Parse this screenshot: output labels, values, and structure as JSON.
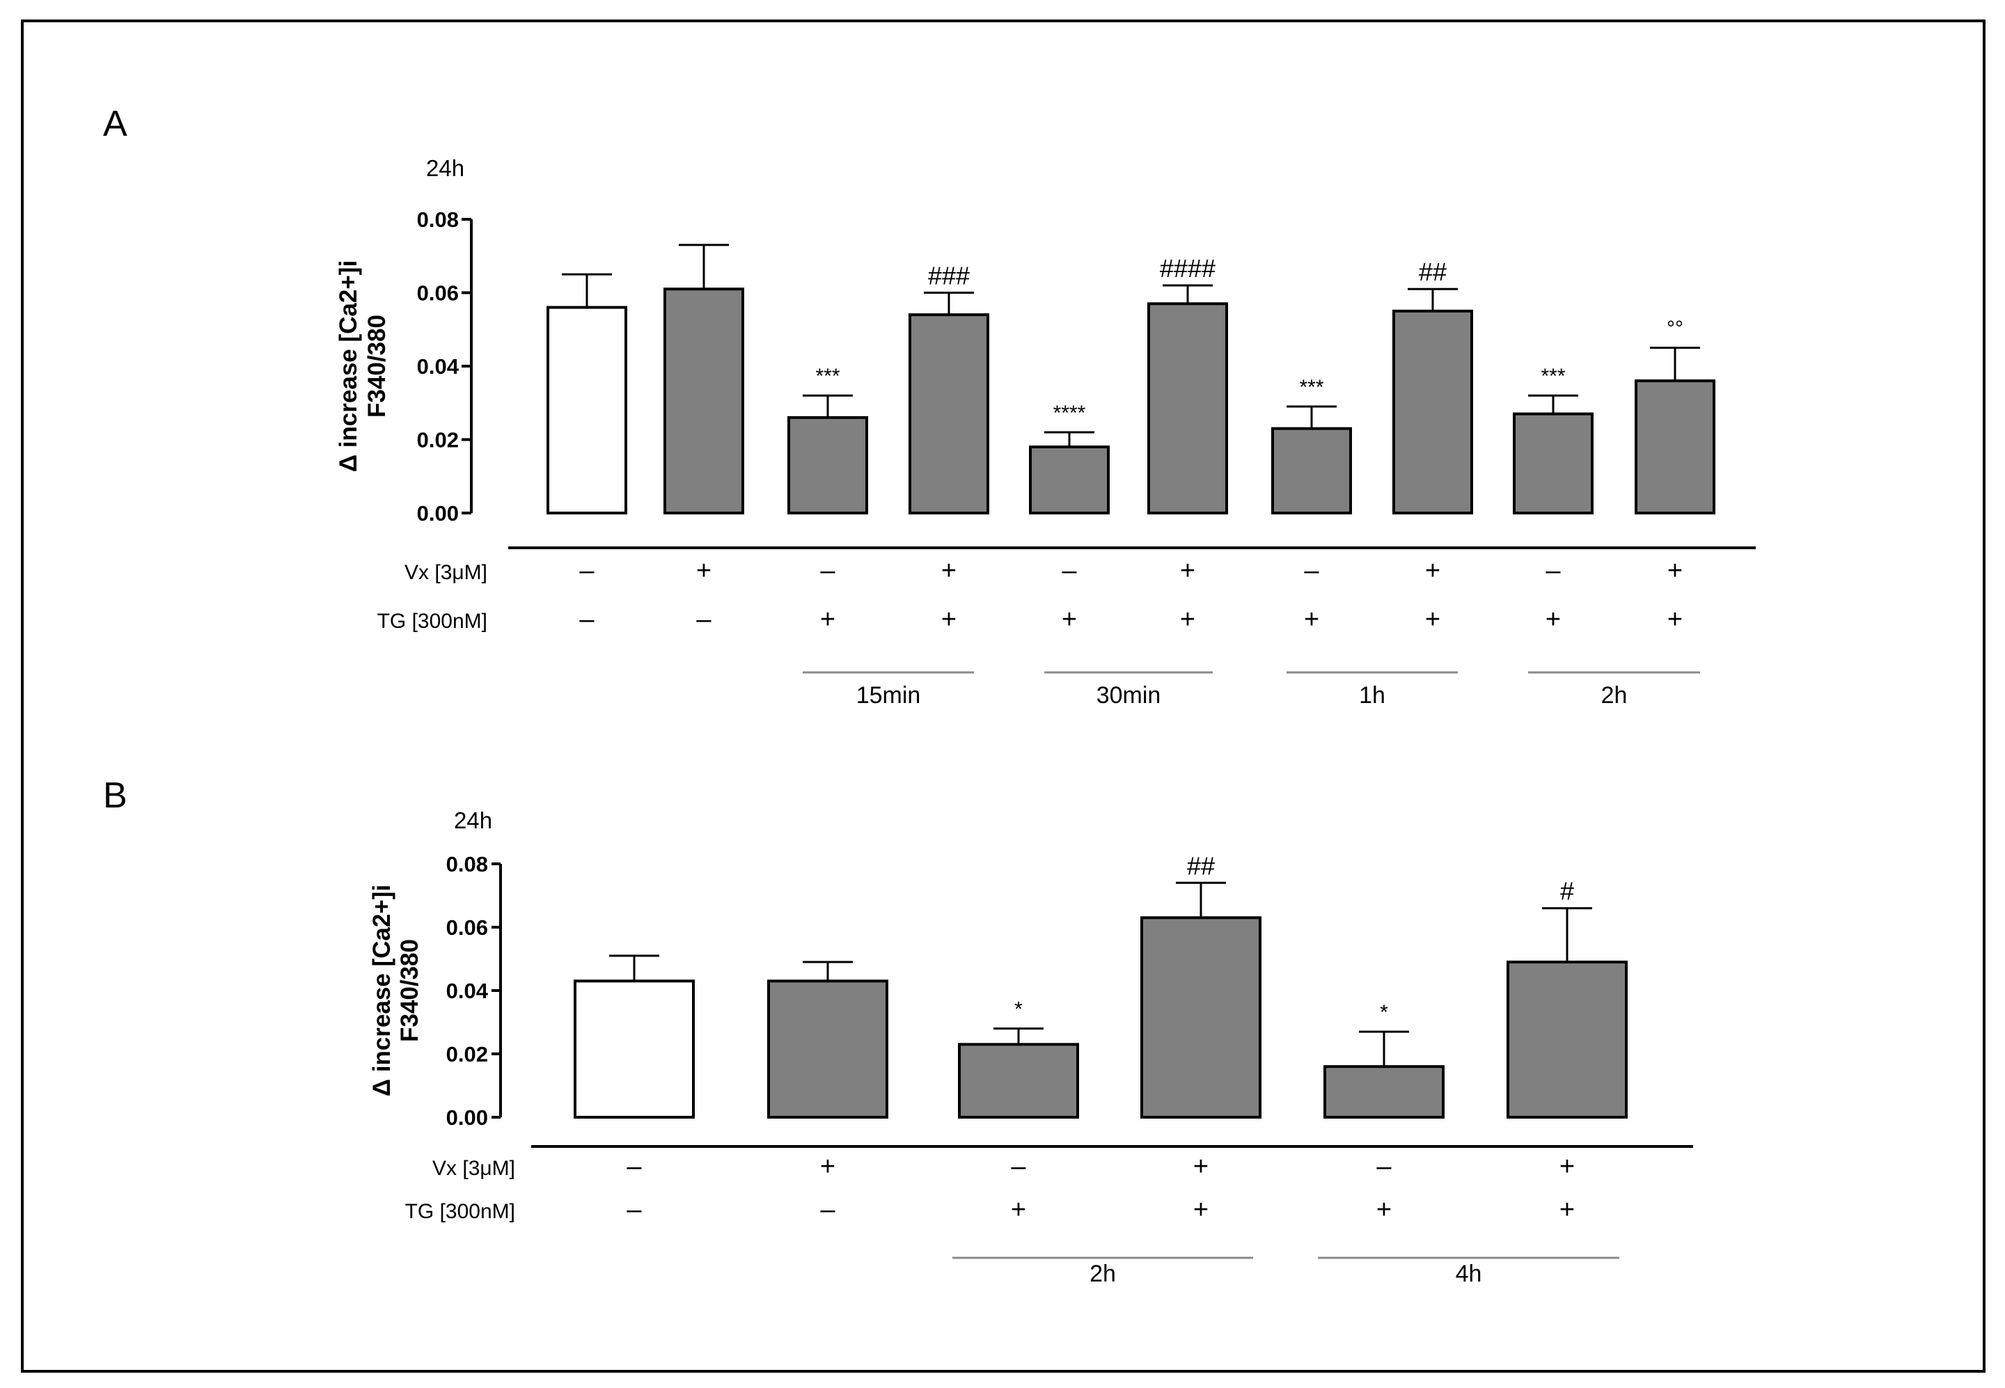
{
  "chart_data": [
    {
      "type": "bar",
      "panel": "A",
      "title": "24h",
      "ylabel_line1": "Δ increase [Ca2+]i",
      "ylabel_line2": "F340/380",
      "ylim": [
        0,
        0.08
      ],
      "yticks": [
        "0.00",
        "0.02",
        "0.04",
        "0.06",
        "0.08"
      ],
      "values": [
        0.056,
        0.061,
        0.026,
        0.054,
        0.018,
        0.057,
        0.023,
        0.055,
        0.027,
        0.036
      ],
      "errors": [
        0.009,
        0.012,
        0.006,
        0.006,
        0.004,
        0.005,
        0.006,
        0.006,
        0.005,
        0.009
      ],
      "fills": [
        "#ffffff",
        "#808080",
        "#808080",
        "#808080",
        "#808080",
        "#808080",
        "#808080",
        "#808080",
        "#808080",
        "#808080"
      ],
      "annotations": [
        "",
        "",
        "***",
        "###",
        "****",
        "####",
        "***",
        "##",
        "***",
        "°°"
      ],
      "condition_rows": [
        {
          "label": "Vx   [3μM]",
          "signs": [
            "–",
            "+",
            "–",
            "+",
            "–",
            "+",
            "–",
            "+",
            "–",
            "+"
          ]
        },
        {
          "label": "TG  [300nM]",
          "signs": [
            "–",
            "–",
            "+",
            "+",
            "+",
            "+",
            "+",
            "+",
            "+",
            "+"
          ]
        }
      ],
      "groups": [
        {
          "label": "15min",
          "bars": [
            2,
            3
          ]
        },
        {
          "label": "30min",
          "bars": [
            4,
            5
          ]
        },
        {
          "label": "1h",
          "bars": [
            6,
            7
          ]
        },
        {
          "label": "2h",
          "bars": [
            8,
            9
          ]
        }
      ]
    },
    {
      "type": "bar",
      "panel": "B",
      "title": "24h",
      "ylabel_line1": "Δ increase [Ca2+]i",
      "ylabel_line2": "F340/380",
      "ylim": [
        0,
        0.08
      ],
      "yticks": [
        "0.00",
        "0.02",
        "0.04",
        "0.06",
        "0.08"
      ],
      "values": [
        0.043,
        0.043,
        0.023,
        0.063,
        0.016,
        0.049
      ],
      "errors": [
        0.008,
        0.006,
        0.005,
        0.011,
        0.011,
        0.017
      ],
      "fills": [
        "#ffffff",
        "#808080",
        "#808080",
        "#808080",
        "#808080",
        "#808080"
      ],
      "annotations": [
        "",
        "",
        "*",
        "##",
        "*",
        "#"
      ],
      "condition_rows": [
        {
          "label": "Vx   [3μM]",
          "signs": [
            "–",
            "+",
            "–",
            "+",
            "–",
            "+"
          ]
        },
        {
          "label": "TG  [300nM]",
          "signs": [
            "–",
            "–",
            "+",
            "+",
            "+",
            "+"
          ]
        }
      ],
      "groups": [
        {
          "label": "2h",
          "bars": [
            2,
            3
          ]
        },
        {
          "label": "4h",
          "bars": [
            4,
            5
          ]
        }
      ]
    }
  ]
}
